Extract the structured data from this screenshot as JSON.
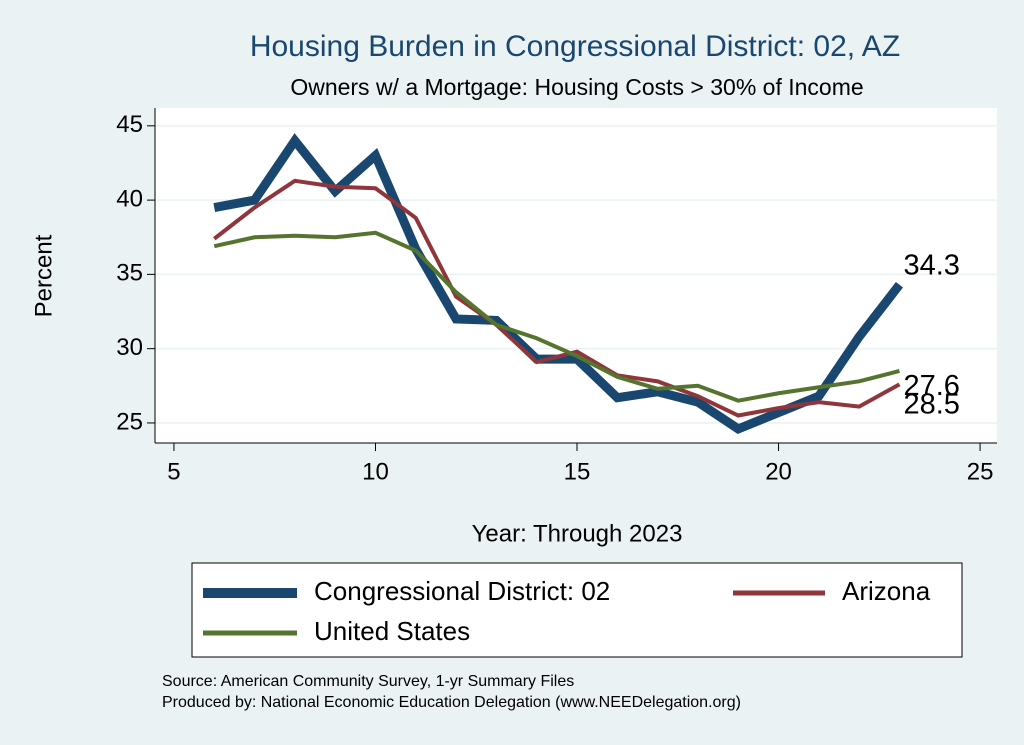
{
  "chart_data": {
    "type": "line",
    "title": "Housing Burden in Congressional District:  02, AZ",
    "subtitle": "Owners w/ a Mortgage: Housing Costs > 30% of Income",
    "x_label": "Year: Through 2023",
    "y_label": "Percent",
    "x": [
      6,
      7,
      8,
      9,
      10,
      11,
      12,
      13,
      14,
      15,
      16,
      17,
      18,
      19,
      20,
      21,
      22,
      23
    ],
    "series": [
      {
        "name": "Congressional District:  02",
        "color": "#1a476f",
        "values": [
          39.5,
          40.0,
          44.0,
          40.6,
          43.0,
          36.7,
          32.0,
          31.9,
          29.3,
          29.3,
          26.7,
          27.1,
          26.4,
          24.6,
          25.7,
          26.8,
          30.8,
          34.3
        ]
      },
      {
        "name": "Arizona",
        "color": "#90353b",
        "values": [
          37.4,
          39.5,
          41.3,
          40.9,
          40.8,
          38.8,
          33.5,
          31.6,
          29.1,
          29.8,
          28.2,
          27.8,
          26.8,
          25.5,
          26.0,
          26.4,
          26.1,
          27.6
        ]
      },
      {
        "name": "United States",
        "color": "#55752f",
        "values": [
          36.9,
          37.5,
          37.6,
          37.5,
          37.8,
          36.6,
          33.8,
          31.6,
          30.7,
          29.5,
          28.1,
          27.3,
          27.5,
          26.5,
          27.0,
          27.4,
          27.8,
          28.5
        ]
      }
    ],
    "xlim": [
      4.53,
      25.42
    ],
    "xticks": [
      5,
      10,
      15,
      20,
      25
    ],
    "ylim": [
      23.65,
      46.2
    ],
    "yticks": [
      25,
      30,
      35,
      40,
      45
    ],
    "grid": true,
    "notes": [
      "Source: American Community Survey, 1-yr Summary Files",
      "Produced by: National Economic Education Delegation (www.NEEDelegation.org)"
    ]
  }
}
